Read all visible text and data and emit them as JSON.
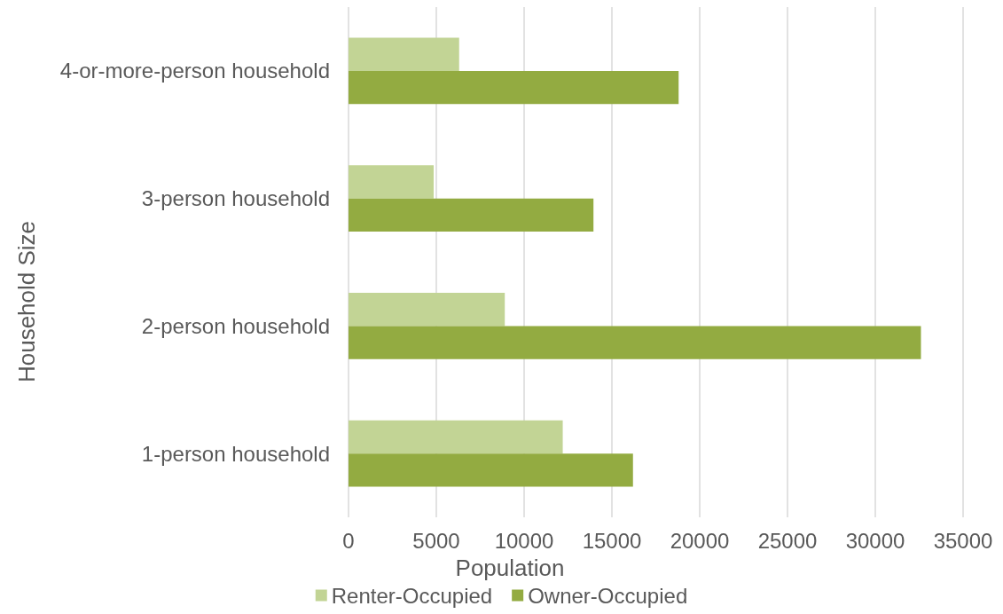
{
  "chart_data": {
    "type": "bar",
    "orientation": "horizontal",
    "categories": [
      "4-or-more-person household",
      "3-person household",
      "2-person household",
      "1-person household"
    ],
    "xlabel": "Population",
    "ylabel": "Household Size",
    "series": [
      {
        "name": "Renter-Occupied",
        "color": "#c2d495",
        "values": [
          6300,
          4850,
          8900,
          12200
        ]
      },
      {
        "name": "Owner-Occupied",
        "color": "#93ab41",
        "values": [
          18800,
          13950,
          32600,
          16200
        ]
      }
    ],
    "xlim": [
      0,
      35000
    ],
    "xticks": [
      0,
      5000,
      10000,
      15000,
      20000,
      25000,
      30000,
      35000
    ],
    "grid": "x",
    "legend": "bottom"
  }
}
